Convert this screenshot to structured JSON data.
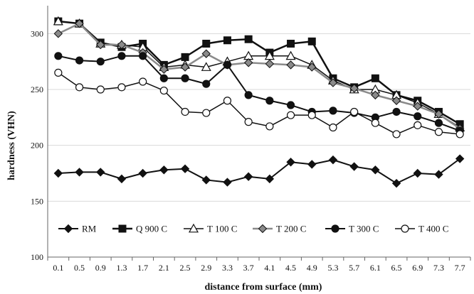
{
  "chart_data": {
    "type": "line",
    "xlabel": "distance from surface (mm)",
    "ylabel": "hardness (VHN)",
    "ylim": [
      100,
      325
    ],
    "yticks": [
      100,
      150,
      200,
      250,
      300
    ],
    "grid": "horizontal",
    "legend_position": "inside-bottom",
    "categories": [
      "0.1",
      "0.5",
      "0.9",
      "1.3",
      "1.7",
      "2.1",
      "2.5",
      "2.9",
      "3.3",
      "3.7",
      "4.1",
      "4.5",
      "4.9",
      "5.3",
      "5.7",
      "6.1",
      "6.5",
      "6.9",
      "7.3",
      "7.7"
    ],
    "series": [
      {
        "name": "RM",
        "marker": "diamond",
        "marker_fill": "#111111",
        "line_color": "#111111",
        "line_width": 2,
        "values": [
          175,
          176,
          176,
          170,
          175,
          178,
          179,
          169,
          167,
          172,
          170,
          185,
          183,
          187,
          181,
          178,
          166,
          175,
          174,
          188
        ]
      },
      {
        "name": "Q 900 C",
        "marker": "square",
        "marker_fill": "#111111",
        "line_color": "#111111",
        "line_width": 2.5,
        "values": [
          311,
          309,
          292,
          288,
          291,
          272,
          279,
          291,
          294,
          295,
          283,
          291,
          293,
          260,
          252,
          260,
          245,
          240,
          230,
          219
        ]
      },
      {
        "name": "T 100 C",
        "marker": "triangle",
        "marker_fill": "#ffffff",
        "line_color": "#111111",
        "line_width": 1.5,
        "values": [
          311,
          309,
          291,
          290,
          288,
          270,
          272,
          270,
          275,
          280,
          280,
          280,
          272,
          258,
          250,
          250,
          245,
          238,
          228,
          216
        ]
      },
      {
        "name": "T 200 C",
        "marker": "diamond",
        "marker_fill": "#8a8a8a",
        "line_color": "#8a8a8a",
        "line_width": 2.5,
        "values": [
          300,
          309,
          290,
          290,
          283,
          268,
          270,
          282,
          272,
          274,
          273,
          272,
          270,
          256,
          251,
          245,
          240,
          235,
          228,
          215
        ]
      },
      {
        "name": "T 300 C",
        "marker": "circle",
        "marker_fill": "#111111",
        "line_color": "#111111",
        "line_width": 2,
        "values": [
          280,
          276,
          275,
          280,
          280,
          260,
          260,
          255,
          272,
          245,
          240,
          236,
          230,
          231,
          229,
          225,
          230,
          226,
          220,
          213
        ]
      },
      {
        "name": "T 400 C",
        "marker": "circle",
        "marker_fill": "#ffffff",
        "line_color": "#111111",
        "line_width": 1.5,
        "values": [
          265,
          252,
          250,
          252,
          257,
          249,
          230,
          229,
          240,
          221,
          217,
          227,
          227,
          216,
          230,
          220,
          210,
          218,
          212,
          210
        ]
      }
    ]
  }
}
